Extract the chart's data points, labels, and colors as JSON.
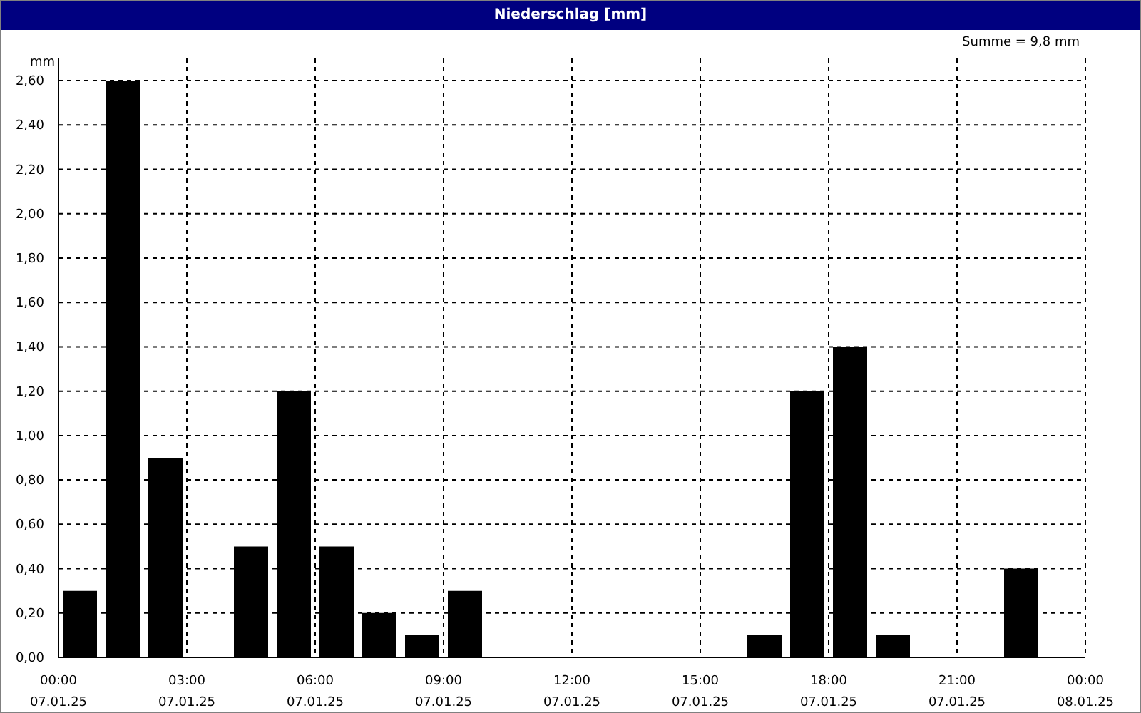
{
  "chart_data": {
    "type": "bar",
    "title": "Niederschlag [mm]",
    "ylabel": "mm",
    "annotations": [
      "Summe = 9,8 mm"
    ],
    "x": [
      "--01-07T00:30",
      "--01-07T01:30",
      "--01-07T02:30",
      "--01-07T03:30",
      "--01-07T04:30",
      "--01-07T05:30",
      "--01-07T06:30",
      "--01-07T07:30",
      "--01-07T08:30",
      "--01-07T09:30",
      "--01-07T10:30",
      "--01-07T11:30",
      "--01-07T12:30",
      "--01-07T13:30",
      "--01-07T14:30",
      "--01-07T15:30",
      "--01-07T16:30",
      "--01-07T17:30",
      "--01-07T18:30",
      "--01-07T19:30",
      "--01-07T20:30",
      "--01-07T21:30",
      "--01-07T22:30",
      "--01-07T23:30"
    ],
    "values": [
      0.3,
      2.6,
      0.9,
      0,
      0.5,
      1.2,
      0.5,
      0.2,
      0.1,
      0.3,
      0,
      0,
      0,
      0,
      0,
      0,
      0.1,
      1.2,
      1.4,
      0.1,
      0,
      0,
      0.4,
      0
    ],
    "color": "#000000",
    "xlim": [
      "--01-07T00:00",
      "--01-08T00:00"
    ],
    "xticks": [
      {
        "value": "--01-07T00:00",
        "label": "00:00\n07.01.25"
      },
      {
        "value": "--01-07T03:00",
        "label": "03:00\n07.01.25"
      },
      {
        "value": "--01-07T06:00",
        "label": "06:00\n07.01.25"
      },
      {
        "value": "--01-07T09:00",
        "label": "09:00\n07.01.25"
      },
      {
        "value": "--01-07T12:00",
        "label": "12:00\n07.01.25"
      },
      {
        "value": "--01-07T15:00",
        "label": "15:00\n07.01.25"
      },
      {
        "value": "--01-07T18:00",
        "label": "18:00\n07.01.25"
      },
      {
        "value": "--01-07T21:00",
        "label": "21:00\n07.01.25"
      },
      {
        "value": "--01-08T00:00",
        "label": "00:00\n08.01.25"
      }
    ],
    "ylim": [
      0,
      2.7
    ],
    "yticks": [
      {
        "value": 0,
        "label": "0,00"
      },
      {
        "value": 0.2,
        "label": "0,20"
      },
      {
        "value": 0.4,
        "label": "0,40"
      },
      {
        "value": 0.6,
        "label": "0,60"
      },
      {
        "value": 0.8,
        "label": "0,80"
      },
      {
        "value": 1,
        "label": "1,00"
      },
      {
        "value": 1.2,
        "label": "1,20"
      },
      {
        "value": 1.4,
        "label": "1,40"
      },
      {
        "value": 1.6,
        "label": "1,60"
      },
      {
        "value": 1.8,
        "label": "1,80"
      },
      {
        "value": 2,
        "label": "2,00"
      },
      {
        "value": 2.2,
        "label": "2,20"
      },
      {
        "value": 2.4,
        "label": "2,40"
      },
      {
        "value": 2.6,
        "label": "2,60"
      }
    ],
    "grid": true
  }
}
